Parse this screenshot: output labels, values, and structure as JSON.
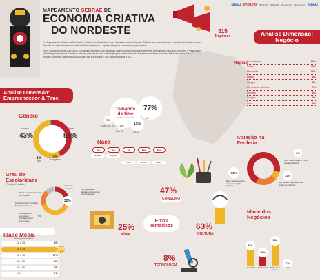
{
  "header": {
    "line1_a": "MAPEAMENTO ",
    "line1_b": "SEBRAE",
    "line1_c": " DE",
    "line2": "ECONOMIA CRIATIVA",
    "line3": "DO NORDESTE",
    "logos": [
      "SEBRAE",
      "impacto",
      "CRIATIVO",
      "SINCAJÁ",
      "REALIZAÇÃO",
      "REALIZAÇÃO",
      "SEBRAE"
    ]
  },
  "total": {
    "value": "515",
    "label": "Negócios"
  },
  "intro": {
    "p1": "O Mapeamento Sebrae de Economia Criativa do Nordeste é uma iniciativa promovida pelo Sebrae, em parceria com o Impacto Nordeste com o objetivo de estimular a economia criativa nordestina e apoiar soluções inovadoras para o setor.",
    "p2": "Entre agosto e outubro de 2020, o trabalho mapeou 515 negócios da economia criativa em diversos segmentos, desde o consumo (Publicidade, Marketing, Arquitetura, Design e Moda), passando pela cultura (Expressões Culturais, Patrimônio e Artes, Música, Artes Visuais e Artes Cênicas), mídias (Editorial, Games e Audiovisual) até tecnologia (P&D, Biotecnologia e TIC)."
  },
  "regiao": {
    "section_title": "Análise Dimensão: Negócio",
    "title": "Região",
    "items": [
      {
        "label": "Pernambuco",
        "value": "29%"
      },
      {
        "label": "Bahia",
        "value": "20%"
      },
      {
        "label": "Maranhão",
        "value": "16%"
      },
      {
        "label": "Ceará",
        "value": "8%"
      },
      {
        "label": "Sergipe",
        "value": "8%"
      },
      {
        "label": "Rio Grande do Norte",
        "value": "7%"
      },
      {
        "label": "Paraíba",
        "value": "6%"
      },
      {
        "label": "Sergipe",
        "value": "3%"
      },
      {
        "label": "Piauí",
        "value": "3%"
      }
    ]
  },
  "empreendedor": {
    "section_title": "Análise Dimensão: Empreendedor & Time"
  },
  "genero": {
    "title": "Gênero",
    "left_value": "43%",
    "left_label": "Homens",
    "right_value": "55%",
    "right_label": "Mulheres",
    "bottom1_value": "1%",
    "bottom1_label": "N/R",
    "bottom2_value": "1%",
    "bottom2_label": "Transgênero"
  },
  "time": {
    "title": "Tamanho do time",
    "subtitle": "*Inclusive Fundador",
    "b1": "77%",
    "b1_label": "Até 4",
    "b2": "7%",
    "b2_label": "Mais que 100",
    "b3": "2%",
    "b3_label": "20 a 50",
    "b4": "15%",
    "b4_label": "5 a 19"
  },
  "raca": {
    "title": "Raça",
    "values": [
      "6%",
      "1%",
      "3%",
      "35%",
      "56%"
    ],
    "labels": [
      "Amarela",
      "Indígena",
      "Preta",
      "Branca",
      "Parda"
    ]
  },
  "escolaridade": {
    "title": "Grau de Escolaridade",
    "subtitle": "*Principal Fundador",
    "value": "32%",
    "labels": [
      "Superior completo",
      "Pós graduação Mestrado Doutorado Pós-Doutorado",
      "Médio completo Superior incompleto",
      "Fundamental II completo / Médio incompleto",
      "Fundamental I completo / Fundamental II incompleto",
      "N/R"
    ]
  },
  "idade_media": {
    "title": "Idade Média",
    "subtitle": "*Principal Fundador",
    "rows": [
      {
        "label": "18 a 25",
        "value": "6%",
        "frac": 0.06
      },
      {
        "label": "25 a 35",
        "value": "32%",
        "frac": 0.32
      },
      {
        "label": "35 a 45",
        "value": "17%",
        "frac": 0.17
      },
      {
        "label": "45 a 55",
        "value": "6%",
        "frac": 0.06
      },
      {
        "label": "55 a 65",
        "value": "3%",
        "frac": 0.03
      },
      {
        "label": "65+",
        "value": "1%",
        "frac": 0.01
      }
    ]
  },
  "eixos": {
    "title": "Eixos Temáticos",
    "consumo_value": "47%",
    "consumo_label": "CONSUMO",
    "midia_value": "25%",
    "midia_label": "MÍDIA",
    "cultura_value": "63%",
    "cultura_label": "CULTURA",
    "tecnologia_value": "8%",
    "tecnologia_label": "TECNOLOGIA"
  },
  "periferia": {
    "title": "Atuação na Periferia",
    "v1": "71%",
    "l1": "Não, nosso negócio não é em região periférica",
    "v2": "8%",
    "l2": "Sim, nosso negócio é em região periférica",
    "v3": "21%",
    "l3": "Sim, nosso negócio é uma região de periferia"
  },
  "idade_negocios": {
    "title": "Idade dos Negócios",
    "bars": [
      {
        "value": "32%",
        "label": "Até 2 anos",
        "frac": 0.32,
        "color": "#f0b429"
      },
      {
        "value": "22%",
        "label": "2 a 4 anos",
        "frac": 0.22,
        "color": "#c0232c"
      },
      {
        "value": "39%",
        "label": "Mais de 5 anos",
        "frac": 0.39,
        "color": "#f0b429"
      },
      {
        "value": "7%",
        "label": "N/R",
        "frac": 0.07,
        "color": "#9e9e9e"
      }
    ]
  }
}
